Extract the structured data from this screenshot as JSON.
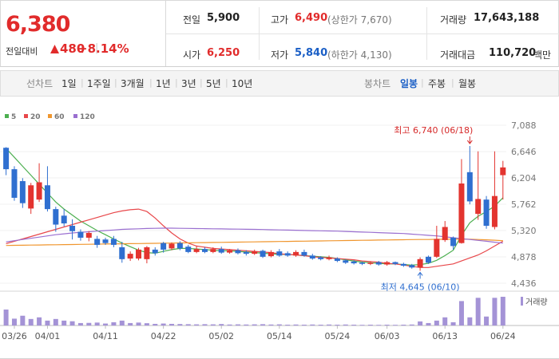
{
  "header": {
    "price": "6,380",
    "change_label": "전일대비",
    "change": "480",
    "change_rate": "+8.14%",
    "stats": [
      [
        {
          "label": "전일",
          "value": "5,900"
        },
        {
          "label": "고가",
          "value": "6,490",
          "note": "(상한가 7,670)"
        },
        {
          "label": "거래량",
          "value": "17,643,188"
        }
      ],
      [
        {
          "label": "시가",
          "value": "6,250"
        },
        {
          "label": "저가",
          "value": "5,840",
          "note": "(하한가 4,130)"
        },
        {
          "label": "거래대금",
          "value": "110,720",
          "unit": "백만"
        }
      ]
    ]
  },
  "toolbar": {
    "line_chart": "선차트",
    "line_periods": [
      "1일",
      "1주일",
      "3개월",
      "1년",
      "3년",
      "5년",
      "10년"
    ],
    "candle_chart": "봉차트",
    "candle_periods": [
      "일봉",
      "주봉",
      "월봉"
    ]
  },
  "chart_data": {
    "type": "candlestick",
    "categories": [
      null,
      "03/26",
      null,
      null,
      null,
      "04/01",
      null,
      null,
      null,
      null,
      null,
      null,
      "04/11",
      null,
      null,
      null,
      null,
      null,
      null,
      "04/22",
      null,
      null,
      null,
      null,
      null,
      null,
      "05/02",
      null,
      null,
      null,
      null,
      null,
      null,
      "05/14",
      null,
      null,
      null,
      null,
      null,
      null,
      "05/24",
      null,
      null,
      null,
      null,
      null,
      "06/03",
      null,
      null,
      null,
      null,
      null,
      null,
      "06/13",
      null,
      null,
      null,
      null,
      null,
      null,
      "06/24"
    ],
    "up_color": "#e3342f",
    "down_color": "#2f6fd0",
    "open": [
      6710,
      6350,
      6150,
      5690,
      5840,
      6080,
      5680,
      5570,
      5400,
      5300,
      5200,
      5180,
      5170,
      5180,
      5040,
      4850,
      4850,
      4840,
      5000,
      5110,
      5020,
      5110,
      5050,
      4960,
      5010,
      4960,
      5010,
      4950,
      4990,
      4960,
      4930,
      4980,
      4890,
      4970,
      4940,
      4900,
      4960,
      4900,
      4870,
      4840,
      4850,
      4820,
      4800,
      4780,
      4760,
      4790,
      4750,
      4790,
      4760,
      4740,
      4700,
      4880,
      4880,
      5160,
      5200,
      5110,
      6300,
      5600,
      5840,
      5380,
      6250
    ],
    "high": [
      6720,
      6400,
      6200,
      6120,
      6450,
      6400,
      5720,
      5680,
      5510,
      5340,
      5310,
      5230,
      5200,
      5230,
      5130,
      4970,
      5030,
      5060,
      5040,
      5130,
      5120,
      5140,
      5080,
      5060,
      5040,
      5040,
      5050,
      5010,
      5020,
      4990,
      5000,
      5000,
      4990,
      5010,
      4970,
      4990,
      5000,
      4930,
      4890,
      4900,
      4870,
      4840,
      4820,
      4800,
      4800,
      4810,
      4810,
      4800,
      4780,
      4760,
      4870,
      4900,
      5400,
      5480,
      5220,
      6520,
      6740,
      6650,
      5900,
      6650,
      6490
    ],
    "low": [
      6250,
      5820,
      5700,
      5600,
      5800,
      5640,
      5300,
      5390,
      5170,
      5150,
      5140,
      5030,
      5080,
      5040,
      4780,
      4810,
      4820,
      4770,
      4900,
      4950,
      4990,
      4990,
      4940,
      4940,
      4940,
      4940,
      4930,
      4930,
      4920,
      4900,
      4910,
      4860,
      4870,
      4880,
      4880,
      4880,
      4880,
      4830,
      4820,
      4820,
      4790,
      4760,
      4750,
      4740,
      4740,
      4730,
      4730,
      4740,
      4710,
      4680,
      4645,
      4760,
      4860,
      5130,
      5000,
      5100,
      5760,
      5500,
      5350,
      5340,
      5840
    ],
    "close": [
      6350,
      5870,
      5780,
      6080,
      6130,
      5680,
      5420,
      5440,
      5310,
      5200,
      5280,
      5080,
      5110,
      5080,
      4840,
      4930,
      5000,
      5040,
      4940,
      5000,
      5100,
      5020,
      4960,
      5010,
      4960,
      5010,
      4950,
      4990,
      4940,
      4930,
      4970,
      4880,
      4960,
      4900,
      4900,
      4960,
      4900,
      4850,
      4840,
      4870,
      4810,
      4780,
      4770,
      4760,
      4780,
      4750,
      4790,
      4760,
      4730,
      4700,
      4840,
      4780,
      5180,
      5380,
      5060,
      6110,
      5810,
      5850,
      5400,
      5900,
      6380
    ],
    "series": [
      {
        "name": "5",
        "color": "#4caf50",
        "values": [
          6700,
          6550,
          6400,
          6250,
          6100,
          5950,
          5800,
          5680,
          5580,
          5480,
          5400,
          5320,
          5250,
          5180,
          5110,
          5050,
          4990,
          4950,
          4940,
          4970,
          5000,
          5020,
          5020,
          5010,
          5000,
          4990,
          4980,
          4980,
          4970,
          4960,
          4950,
          4940,
          4930,
          4920,
          4920,
          4910,
          4900,
          4890,
          4880,
          4870,
          4850,
          4830,
          4810,
          4790,
          4780,
          4770,
          4760,
          4760,
          4750,
          4740,
          4750,
          4770,
          4820,
          4900,
          4990,
          5240,
          5450,
          5560,
          5640,
          5730,
          5870
        ]
      },
      {
        "name": "20",
        "color": "#e8474a",
        "values": [
          5100,
          5140,
          5180,
          5220,
          5260,
          5300,
          5340,
          5380,
          5420,
          5460,
          5500,
          5540,
          5580,
          5620,
          5650,
          5670,
          5680,
          5640,
          5530,
          5400,
          5280,
          5180,
          5110,
          5060,
          5040,
          5020,
          5010,
          5000,
          4990,
          4980,
          4970,
          4960,
          4950,
          4930,
          4920,
          4910,
          4900,
          4880,
          4870,
          4860,
          4850,
          4840,
          4830,
          4810,
          4800,
          4790,
          4770,
          4760,
          4740,
          4720,
          4700,
          4700,
          4720,
          4740,
          4760,
          4810,
          4860,
          4910,
          4980,
          5060,
          5140
        ]
      },
      {
        "name": "60",
        "color": "#f0962e",
        "values": [
          5070,
          5072,
          5074,
          5076,
          5078,
          5080,
          5082,
          5084,
          5086,
          5088,
          5090,
          5092,
          5094,
          5096,
          5098,
          5100,
          5102,
          5104,
          5106,
          5108,
          5110,
          5112,
          5114,
          5116,
          5118,
          5120,
          5122,
          5124,
          5126,
          5128,
          5130,
          5132,
          5134,
          5136,
          5138,
          5140,
          5142,
          5144,
          5146,
          5148,
          5150,
          5152,
          5154,
          5156,
          5158,
          5160,
          5162,
          5164,
          5166,
          5168,
          5170,
          5170,
          5172,
          5174,
          5176,
          5178,
          5176,
          5170,
          5164,
          5158,
          5150
        ]
      },
      {
        "name": "120",
        "color": "#9a6fd0",
        "values": [
          5130,
          5150,
          5170,
          5190,
          5210,
          5230,
          5250,
          5265,
          5280,
          5290,
          5300,
          5310,
          5320,
          5330,
          5340,
          5345,
          5350,
          5355,
          5358,
          5360,
          5360,
          5358,
          5356,
          5354,
          5352,
          5350,
          5348,
          5346,
          5344,
          5342,
          5340,
          5337,
          5334,
          5331,
          5328,
          5325,
          5322,
          5319,
          5316,
          5313,
          5310,
          5305,
          5300,
          5295,
          5290,
          5285,
          5280,
          5275,
          5270,
          5260,
          5250,
          5240,
          5230,
          5215,
          5200,
          5185,
          5170,
          5155,
          5140,
          5125,
          5110
        ]
      }
    ],
    "volume": {
      "name": "거래량",
      "color": "#a493d6",
      "values": [
        9800000,
        4200000,
        6000000,
        4000000,
        5000000,
        3000000,
        4000000,
        3000000,
        2600000,
        1500000,
        1600000,
        1800000,
        1200000,
        2000000,
        3000000,
        1500000,
        1800000,
        1400000,
        1000000,
        1200000,
        1000000,
        900000,
        800000,
        700000,
        800000,
        700000,
        900000,
        600000,
        700000,
        600000,
        700000,
        800000,
        600000,
        700000,
        500000,
        600000,
        500000,
        600000,
        500000,
        600000,
        500000,
        600000,
        500000,
        400000,
        500000,
        400000,
        500000,
        400000,
        500000,
        600000,
        2500000,
        1500000,
        3000000,
        5000000,
        2000000,
        15000000,
        5000000,
        17000000,
        5500000,
        17000000,
        17643188
      ]
    },
    "ylim": [
      4436,
      7088
    ],
    "yticks": [
      {
        "value": 7088,
        "label": "7,088"
      },
      {
        "value": 6646,
        "label": "6,646"
      },
      {
        "value": 6204,
        "label": "6,204"
      },
      {
        "value": 5762,
        "label": "5,762"
      },
      {
        "value": 5320,
        "label": "5,320"
      },
      {
        "value": 4878,
        "label": "4,878"
      },
      {
        "value": 4436,
        "label": "4,436"
      }
    ],
    "grid": true,
    "annotations": {
      "high": "최고 6,740 (06/18)",
      "low": "최저 4,645 (06/10)"
    }
  }
}
